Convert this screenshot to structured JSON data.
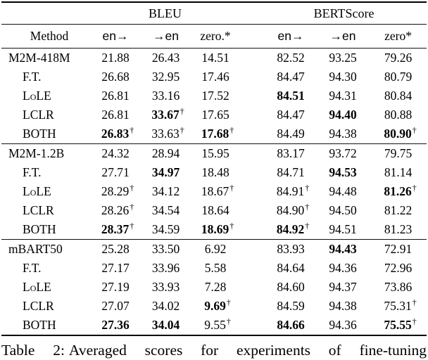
{
  "page": {
    "background": "#ffffff",
    "text_color": "#000000",
    "rule_color": "#111111"
  },
  "table": {
    "group_headers": [
      {
        "label": "BLEU"
      },
      {
        "label": "BERTScore"
      }
    ],
    "column_headers": {
      "method": "Method",
      "cols": [
        "en→",
        "→en",
        "zero.*",
        "en→",
        "→en",
        "zero*"
      ]
    },
    "groups": [
      {
        "rows": [
          {
            "method": "M2M-418M",
            "head": true,
            "cells": [
              {
                "v": "21.88"
              },
              {
                "v": "26.43"
              },
              {
                "v": "14.51"
              },
              {
                "v": "82.52"
              },
              {
                "v": "93.25"
              },
              {
                "v": "79.26"
              }
            ]
          },
          {
            "method": "F.T.",
            "cells": [
              {
                "v": "26.68"
              },
              {
                "v": "32.95"
              },
              {
                "v": "17.46"
              },
              {
                "v": "84.47"
              },
              {
                "v": "94.30"
              },
              {
                "v": "80.79"
              }
            ]
          },
          {
            "method": "LoLE",
            "sc": true,
            "cells": [
              {
                "v": "26.81"
              },
              {
                "v": "33.16"
              },
              {
                "v": "17.52"
              },
              {
                "v": "84.51",
                "b": true
              },
              {
                "v": "94.31"
              },
              {
                "v": "80.84"
              }
            ]
          },
          {
            "method": "LCLR",
            "cells": [
              {
                "v": "26.81"
              },
              {
                "v": "33.67",
                "b": true,
                "d": true
              },
              {
                "v": "17.65"
              },
              {
                "v": "84.47"
              },
              {
                "v": "94.40",
                "b": true
              },
              {
                "v": "80.88"
              }
            ]
          },
          {
            "method": "BOTH",
            "cells": [
              {
                "v": "26.83",
                "b": true,
                "d": true
              },
              {
                "v": "33.63",
                "d": true
              },
              {
                "v": "17.68",
                "b": true,
                "d": true
              },
              {
                "v": "84.49"
              },
              {
                "v": "94.38"
              },
              {
                "v": "80.90",
                "b": true,
                "d": true
              }
            ]
          }
        ]
      },
      {
        "rows": [
          {
            "method": "M2M-1.2B",
            "head": true,
            "cells": [
              {
                "v": "24.32"
              },
              {
                "v": "28.94"
              },
              {
                "v": "15.95"
              },
              {
                "v": "83.17"
              },
              {
                "v": "93.72"
              },
              {
                "v": "79.75"
              }
            ]
          },
          {
            "method": "F.T.",
            "cells": [
              {
                "v": "27.71"
              },
              {
                "v": "34.97",
                "b": true
              },
              {
                "v": "18.48"
              },
              {
                "v": "84.71"
              },
              {
                "v": "94.53",
                "b": true
              },
              {
                "v": "81.14"
              }
            ]
          },
          {
            "method": "LoLE",
            "sc": true,
            "cells": [
              {
                "v": "28.29",
                "d": true
              },
              {
                "v": "34.12"
              },
              {
                "v": "18.67",
                "d": true
              },
              {
                "v": "84.91",
                "d": true
              },
              {
                "v": "94.48"
              },
              {
                "v": "81.26",
                "b": true,
                "d": true
              }
            ]
          },
          {
            "method": "LCLR",
            "cells": [
              {
                "v": "28.26",
                "d": true
              },
              {
                "v": "34.54"
              },
              {
                "v": "18.64"
              },
              {
                "v": "84.90",
                "d": true
              },
              {
                "v": "94.50"
              },
              {
                "v": "81.22"
              }
            ]
          },
          {
            "method": "BOTH",
            "cells": [
              {
                "v": "28.37",
                "b": true,
                "d": true
              },
              {
                "v": "34.59"
              },
              {
                "v": "18.69",
                "b": true,
                "d": true
              },
              {
                "v": "84.92",
                "b": true,
                "d": true
              },
              {
                "v": "94.51"
              },
              {
                "v": "81.23"
              }
            ]
          }
        ]
      },
      {
        "rows": [
          {
            "method": "mBART50",
            "head": true,
            "cells": [
              {
                "v": "25.28"
              },
              {
                "v": "33.50"
              },
              {
                "v": "6.92"
              },
              {
                "v": "83.93"
              },
              {
                "v": "94.43",
                "b": true
              },
              {
                "v": "72.91"
              }
            ]
          },
          {
            "method": "F.T.",
            "cells": [
              {
                "v": "27.17"
              },
              {
                "v": "33.96"
              },
              {
                "v": "5.58"
              },
              {
                "v": "84.64"
              },
              {
                "v": "94.36"
              },
              {
                "v": "72.96"
              }
            ]
          },
          {
            "method": "LoLE",
            "sc": true,
            "cells": [
              {
                "v": "27.19"
              },
              {
                "v": "33.93"
              },
              {
                "v": "7.28"
              },
              {
                "v": "84.60"
              },
              {
                "v": "94.37"
              },
              {
                "v": "73.86"
              }
            ]
          },
          {
            "method": "LCLR",
            "cells": [
              {
                "v": "27.07"
              },
              {
                "v": "34.02"
              },
              {
                "v": "9.69",
                "b": true,
                "d": true
              },
              {
                "v": "84.59"
              },
              {
                "v": "94.38"
              },
              {
                "v": "75.31",
                "d": true
              }
            ]
          },
          {
            "method": "BOTH",
            "cells": [
              {
                "v": "27.36",
                "b": true
              },
              {
                "v": "34.04",
                "b": true
              },
              {
                "v": "9.55",
                "d": true
              },
              {
                "v": "84.66",
                "b": true
              },
              {
                "v": "94.36"
              },
              {
                "v": "75.55",
                "b": true,
                "d": true
              }
            ]
          }
        ]
      }
    ],
    "dagger_symbol": "†"
  },
  "caption": {
    "label": "Table 2:",
    "text": "Averaged scores for experiments of fine-tuning"
  }
}
